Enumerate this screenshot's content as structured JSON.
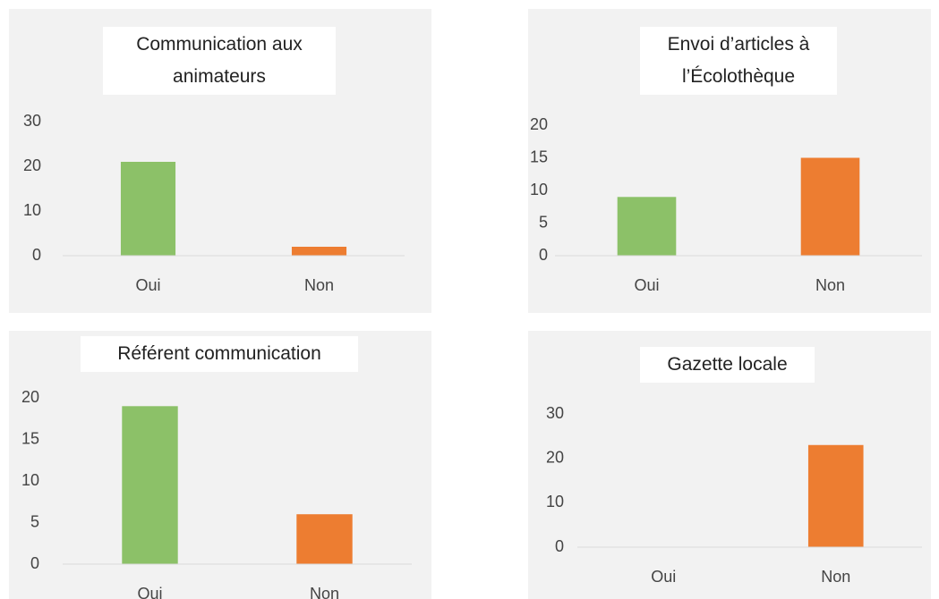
{
  "chart_data": [
    {
      "type": "bar",
      "title": "Communication aux animateurs",
      "categories": [
        "Oui",
        "Non"
      ],
      "values": [
        21,
        2
      ],
      "colors": [
        "#8cc168",
        "#ed7d31"
      ],
      "ylim": [
        0,
        30
      ],
      "yticks": [
        0,
        10,
        20,
        30
      ],
      "grid": false
    },
    {
      "type": "bar",
      "title": "Envoi d’articles à l’Écolothèque",
      "categories": [
        "Oui",
        "Non"
      ],
      "values": [
        9,
        15
      ],
      "colors": [
        "#8cc168",
        "#ed7d31"
      ],
      "ylim": [
        0,
        20
      ],
      "yticks": [
        0,
        5,
        10,
        15,
        20
      ],
      "grid": false
    },
    {
      "type": "bar",
      "title": "Référent communication",
      "categories": [
        "Oui",
        "Non"
      ],
      "values": [
        19,
        6
      ],
      "colors": [
        "#8cc168",
        "#ed7d31"
      ],
      "ylim": [
        0,
        20
      ],
      "yticks": [
        0,
        5,
        10,
        15,
        20
      ],
      "grid": false
    },
    {
      "type": "bar",
      "title": "Gazette locale",
      "categories": [
        "Oui",
        "Non"
      ],
      "values": [
        0,
        23
      ],
      "colors": [
        "#8cc168",
        "#ed7d31"
      ],
      "ylim": [
        0,
        30
      ],
      "yticks": [
        0,
        10,
        20,
        30
      ],
      "grid": false
    }
  ]
}
